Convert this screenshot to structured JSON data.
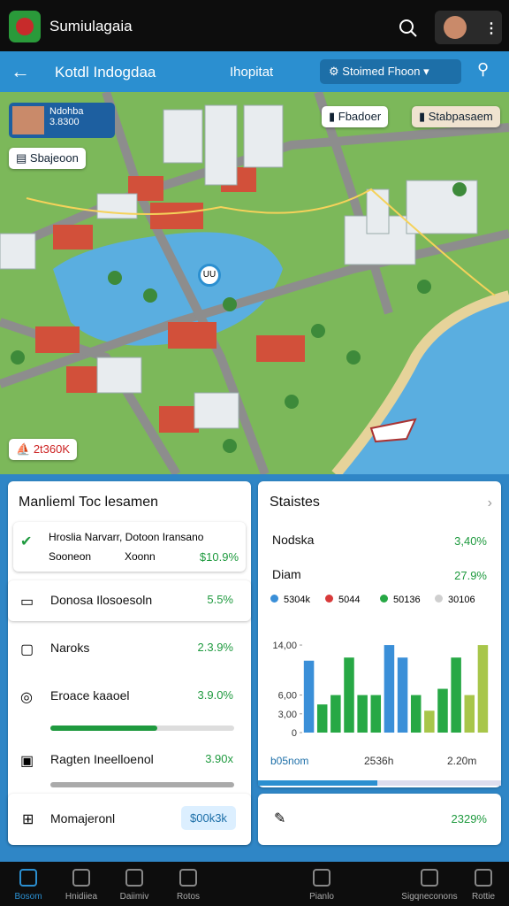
{
  "app_bar": {
    "title": "Sumiulagaia"
  },
  "toolbar": {
    "title": "Kotdl Indogdaa",
    "subtitle": "Ihopitat",
    "dropdown": "Stoimed Fhoon"
  },
  "map": {
    "info_card": {
      "name": "Ndohba",
      "value": "3.8300"
    },
    "labels": [
      "Sbajeoon",
      "Fbadoer",
      "Stabpasaem"
    ],
    "badge": "2t360K",
    "pin": "UU"
  },
  "management": {
    "title": "Manlieml Toc lesamen",
    "featured": {
      "title": "Hroslia Narvarr, Dotoon Iransano",
      "sub": "Sooneon",
      "tag": "Xoonn",
      "value": "$10.9%"
    },
    "rows": [
      {
        "label": "Donosa Ilosoesoln",
        "value": "5.5%"
      },
      {
        "label": "Naroks",
        "value": "2.3.9%"
      },
      {
        "label": "Eroace kaaoel",
        "value": "3.9.0%"
      },
      {
        "label": "Ragten Ineelloenol",
        "value": "3.90x"
      }
    ],
    "footer": {
      "label": "Momajeronl",
      "button": "$00k3k"
    }
  },
  "stats": {
    "title": "Staistes",
    "rows": [
      {
        "label": "Nodska",
        "value": "3,40%"
      },
      {
        "label": "Diam",
        "value": "27.9%"
      }
    ],
    "legend": [
      {
        "label": "5304k",
        "color": "#3a8fd8"
      },
      {
        "label": "5044",
        "color": "#d83a3a"
      },
      {
        "label": "50136",
        "color": "#27a845"
      },
      {
        "label": "30106",
        "color": "#cfcfcf"
      }
    ],
    "chart": {
      "type": "bar",
      "values": [
        11.5,
        4.5,
        6,
        12,
        6,
        6,
        14,
        12,
        6,
        3.5,
        7,
        12,
        6,
        14
      ],
      "colors": [
        "#3a8fd8",
        "#27a845",
        "#27a845",
        "#27a845",
        "#27a845",
        "#27a845",
        "#3a8fd8",
        "#3a8fd8",
        "#27a845",
        "#a8c64a",
        "#27a845",
        "#27a845",
        "#a8c64a",
        "#a8c64a"
      ],
      "ylim": [
        0,
        15
      ],
      "yticks": [
        {
          "value": 14,
          "label": "14,00"
        },
        {
          "value": 6,
          "label": "6,00"
        },
        {
          "value": 3,
          "label": "3,00"
        },
        0
      ],
      "footer_labels": [
        "b05nom",
        "2536h",
        "2.20m"
      ]
    },
    "footer_value": "2329%"
  },
  "nav": [
    "Bosom",
    "Hnidiiea",
    "Daiimiv",
    "Rotos",
    "Pianlo",
    "Sigqneconons",
    "Rottie"
  ]
}
